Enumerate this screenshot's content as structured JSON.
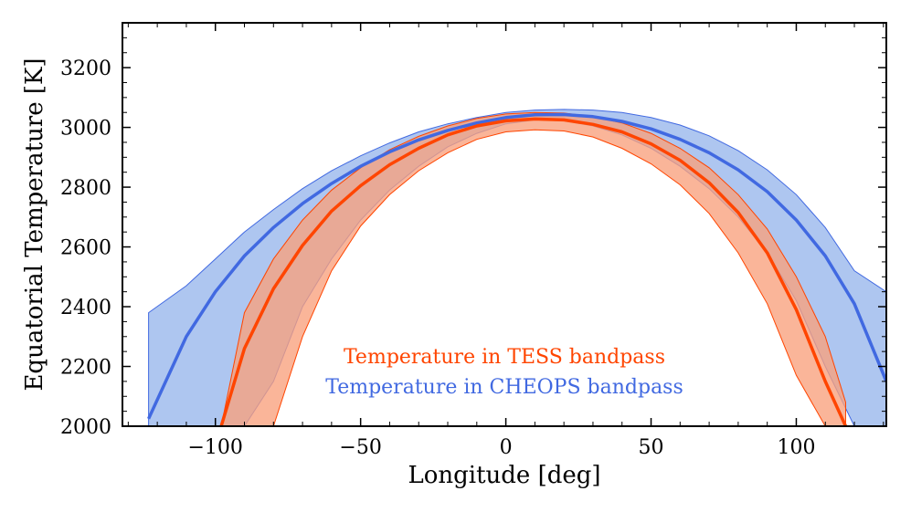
{
  "chart_data": {
    "type": "area",
    "title": "",
    "xlabel": "Longitude [deg]",
    "ylabel": "Equatorial Temperature [K]",
    "xlim": [
      -132,
      131
    ],
    "ylim": [
      2000,
      3350
    ],
    "xticks": [
      -100,
      -50,
      0,
      50,
      100
    ],
    "xtick_labels": [
      "−100",
      "−50",
      "0",
      "50",
      "100"
    ],
    "yticks": [
      2000,
      2200,
      2400,
      2600,
      2800,
      3000,
      3200
    ],
    "ytick_labels": [
      "2000",
      "2200",
      "2400",
      "2600",
      "2800",
      "3000",
      "3200"
    ],
    "series": [
      {
        "name": "Temperature in CHEOPS bandpass",
        "color": "#4169e1",
        "fill_color": "#aec6f0",
        "x": [
          -123,
          -110,
          -100,
          -90,
          -80,
          -70,
          -60,
          -50,
          -40,
          -30,
          -20,
          -10,
          0,
          10,
          20,
          30,
          40,
          50,
          60,
          70,
          80,
          90,
          100,
          110,
          120,
          131
        ],
        "y": [
          2025,
          2300,
          2450,
          2570,
          2665,
          2745,
          2812,
          2870,
          2918,
          2958,
          2990,
          3015,
          3033,
          3042,
          3043,
          3036,
          3020,
          2995,
          2960,
          2915,
          2858,
          2785,
          2690,
          2570,
          2410,
          2150
        ],
        "lower": [
          2000,
          2000,
          2000,
          2000,
          2150,
          2400,
          2560,
          2690,
          2790,
          2870,
          2935,
          2980,
          3012,
          3025,
          3022,
          3005,
          2975,
          2930,
          2870,
          2795,
          2700,
          2580,
          2420,
          2200,
          2000,
          2000
        ],
        "upper": [
          2380,
          2470,
          2560,
          2650,
          2725,
          2795,
          2855,
          2905,
          2948,
          2985,
          3012,
          3033,
          3050,
          3058,
          3060,
          3058,
          3050,
          3033,
          3008,
          2972,
          2922,
          2858,
          2775,
          2665,
          2520,
          2450
        ]
      },
      {
        "name": "Temperature in TESS bandpass",
        "color": "#ff4500",
        "fill_color": "#f9a07c",
        "x": [
          -98,
          -90,
          -80,
          -70,
          -60,
          -50,
          -40,
          -30,
          -20,
          -10,
          0,
          10,
          20,
          30,
          40,
          50,
          60,
          70,
          80,
          90,
          100,
          110,
          117
        ],
        "y": [
          2000,
          2260,
          2460,
          2605,
          2720,
          2805,
          2875,
          2930,
          2975,
          3005,
          3022,
          3028,
          3025,
          3010,
          2985,
          2945,
          2890,
          2815,
          2715,
          2580,
          2390,
          2150,
          2000
        ],
        "lower": [
          2000,
          2000,
          2000,
          2300,
          2520,
          2670,
          2775,
          2855,
          2915,
          2960,
          2985,
          2992,
          2988,
          2968,
          2930,
          2878,
          2808,
          2712,
          2580,
          2410,
          2170,
          2000,
          2000
        ],
        "upper": [
          2000,
          2380,
          2560,
          2690,
          2790,
          2865,
          2925,
          2970,
          3005,
          3030,
          3045,
          3050,
          3048,
          3036,
          3015,
          2980,
          2930,
          2865,
          2775,
          2660,
          2500,
          2300,
          2080
        ]
      }
    ],
    "legend": {
      "placement": "bottom-center",
      "entries": [
        {
          "label": "Temperature in TESS bandpass",
          "color": "#ff4500"
        },
        {
          "label": "Temperature in CHEOPS bandpass",
          "color": "#4169e1"
        }
      ]
    }
  }
}
